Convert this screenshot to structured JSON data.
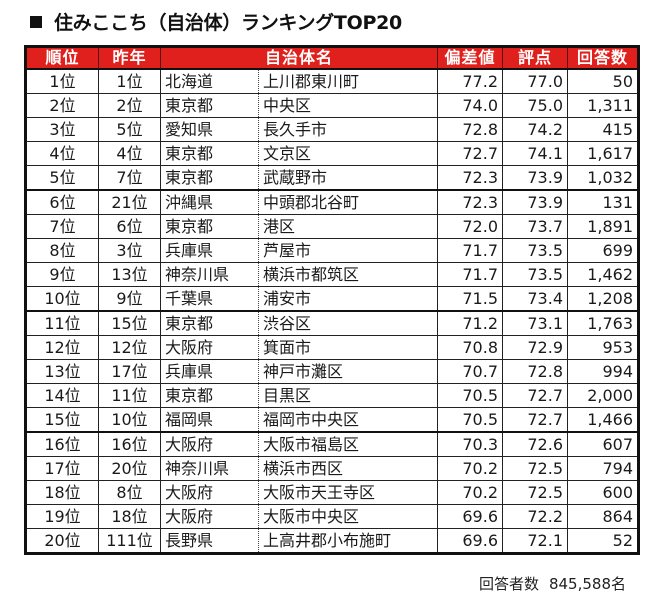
{
  "title": "住みここち（自治体）ランキングTOP20",
  "colors": {
    "header_bg": "#e0201c",
    "header_text": "#ffffff",
    "border": "#111111"
  },
  "table": {
    "headers": {
      "rank": "順位",
      "prev": "昨年",
      "municipality": "自治体名",
      "deviation": "偏差値",
      "score": "評点",
      "responses": "回答数"
    },
    "rows": [
      {
        "rank": "1位",
        "prev": "1位",
        "pref": "北海道",
        "muni": "上川郡東川町",
        "dev": "77.2",
        "score": "77.0",
        "count": "50"
      },
      {
        "rank": "2位",
        "prev": "2位",
        "pref": "東京都",
        "muni": "中央区",
        "dev": "74.0",
        "score": "75.0",
        "count": "1,311"
      },
      {
        "rank": "3位",
        "prev": "5位",
        "pref": "愛知県",
        "muni": "長久手市",
        "dev": "72.8",
        "score": "74.2",
        "count": "415"
      },
      {
        "rank": "4位",
        "prev": "4位",
        "pref": "東京都",
        "muni": "文京区",
        "dev": "72.7",
        "score": "74.1",
        "count": "1,617"
      },
      {
        "rank": "5位",
        "prev": "7位",
        "pref": "東京都",
        "muni": "武蔵野市",
        "dev": "72.3",
        "score": "73.9",
        "count": "1,032"
      },
      {
        "rank": "6位",
        "prev": "21位",
        "pref": "沖縄県",
        "muni": "中頭郡北谷町",
        "dev": "72.3",
        "score": "73.9",
        "count": "131"
      },
      {
        "rank": "7位",
        "prev": "6位",
        "pref": "東京都",
        "muni": "港区",
        "dev": "72.0",
        "score": "73.7",
        "count": "1,891"
      },
      {
        "rank": "8位",
        "prev": "3位",
        "pref": "兵庫県",
        "muni": "芦屋市",
        "dev": "71.7",
        "score": "73.5",
        "count": "699"
      },
      {
        "rank": "9位",
        "prev": "13位",
        "pref": "神奈川県",
        "muni": "横浜市都筑区",
        "dev": "71.7",
        "score": "73.5",
        "count": "1,462"
      },
      {
        "rank": "10位",
        "prev": "9位",
        "pref": "千葉県",
        "muni": "浦安市",
        "dev": "71.5",
        "score": "73.4",
        "count": "1,208"
      },
      {
        "rank": "11位",
        "prev": "15位",
        "pref": "東京都",
        "muni": "渋谷区",
        "dev": "71.2",
        "score": "73.1",
        "count": "1,763"
      },
      {
        "rank": "12位",
        "prev": "12位",
        "pref": "大阪府",
        "muni": "箕面市",
        "dev": "70.8",
        "score": "72.9",
        "count": "953"
      },
      {
        "rank": "13位",
        "prev": "17位",
        "pref": "兵庫県",
        "muni": "神戸市灘区",
        "dev": "70.7",
        "score": "72.8",
        "count": "994"
      },
      {
        "rank": "14位",
        "prev": "11位",
        "pref": "東京都",
        "muni": "目黒区",
        "dev": "70.5",
        "score": "72.7",
        "count": "2,000"
      },
      {
        "rank": "15位",
        "prev": "10位",
        "pref": "福岡県",
        "muni": "福岡市中央区",
        "dev": "70.5",
        "score": "72.7",
        "count": "1,466"
      },
      {
        "rank": "16位",
        "prev": "16位",
        "pref": "大阪府",
        "muni": "大阪市福島区",
        "dev": "70.3",
        "score": "72.6",
        "count": "607"
      },
      {
        "rank": "17位",
        "prev": "20位",
        "pref": "神奈川県",
        "muni": "横浜市西区",
        "dev": "70.2",
        "score": "72.5",
        "count": "794"
      },
      {
        "rank": "18位",
        "prev": "8位",
        "pref": "大阪府",
        "muni": "大阪市天王寺区",
        "dev": "70.2",
        "score": "72.5",
        "count": "600"
      },
      {
        "rank": "19位",
        "prev": "18位",
        "pref": "大阪府",
        "muni": "大阪市中央区",
        "dev": "69.6",
        "score": "72.2",
        "count": "864"
      },
      {
        "rank": "20位",
        "prev": "111位",
        "pref": "長野県",
        "muni": "上高井郡小布施町",
        "dev": "69.6",
        "score": "72.1",
        "count": "52"
      }
    ]
  },
  "footer": {
    "label": "回答者数",
    "value": "845,588名"
  }
}
